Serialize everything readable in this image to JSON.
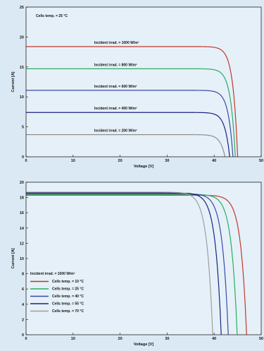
{
  "chart_data": [
    {
      "type": "line",
      "title": "",
      "annotation_top_left": "Cells temp. = 25 °C",
      "xlabel": "Voltage [V]",
      "ylabel": "Current [A]",
      "xlim": [
        0,
        50
      ],
      "ylim": [
        0,
        25
      ],
      "xticks": [
        "0",
        "10",
        "20",
        "30",
        "40",
        "50"
      ],
      "yticks": [
        "0",
        "5",
        "10",
        "15",
        "20",
        "25"
      ],
      "grid": false,
      "series": [
        {
          "name": "Incident irrad. = 1000 W/m²",
          "color": "#c0392b",
          "isc": 18.4,
          "voc": 45.0,
          "knee": 1.0,
          "x": [
            0,
            10,
            20,
            30,
            38,
            40,
            42,
            43,
            44,
            45
          ],
          "y": [
            18.4,
            18.4,
            18.35,
            18.2,
            17.6,
            16.8,
            14.0,
            11.5,
            7.5,
            0
          ]
        },
        {
          "name": "Incident irrad. = 800 W/m²",
          "color": "#27ae60",
          "isc": 14.7,
          "voc": 44.5,
          "knee": 1.0,
          "x": [
            0,
            10,
            20,
            30,
            38,
            40,
            42,
            43,
            44,
            44.5
          ],
          "y": [
            14.7,
            14.7,
            14.65,
            14.5,
            14.0,
            13.2,
            10.5,
            8.0,
            4.0,
            0
          ]
        },
        {
          "name": "Incident irrad. = 600 W/m²",
          "color": "#3949ab",
          "isc": 11.1,
          "voc": 44.0,
          "knee": 1.0,
          "x": [
            0,
            10,
            20,
            30,
            38,
            40,
            41.5,
            42.5,
            43.5,
            44
          ],
          "y": [
            11.1,
            11.1,
            11.05,
            10.9,
            10.4,
            9.8,
            8.0,
            6.0,
            2.5,
            0
          ]
        },
        {
          "name": "Incident irrad. = 400 W/m²",
          "color": "#1a237e",
          "isc": 7.4,
          "voc": 43.3,
          "knee": 1.0,
          "x": [
            0,
            10,
            20,
            30,
            37,
            39,
            41,
            42,
            43,
            43.3
          ],
          "y": [
            7.4,
            7.4,
            7.35,
            7.25,
            6.9,
            6.5,
            5.2,
            3.8,
            1.0,
            0
          ]
        },
        {
          "name": "Incident irrad. = 200 W/m²",
          "color": "#8e8e8e",
          "isc": 3.7,
          "voc": 42.3,
          "knee": 1.0,
          "x": [
            0,
            10,
            20,
            30,
            36,
            38,
            40,
            41,
            42,
            42.3
          ],
          "y": [
            3.7,
            3.7,
            3.68,
            3.6,
            3.4,
            3.2,
            2.5,
            1.8,
            0.5,
            0
          ]
        }
      ]
    },
    {
      "type": "line",
      "title": "",
      "legend_title": "Incident irrad. = 1000 W/m²",
      "legend_position": "bottom-left",
      "xlabel": "Voltage [V]",
      "ylabel": "Current [A]",
      "xlim": [
        0,
        50
      ],
      "ylim": [
        0,
        20
      ],
      "xticks": [
        "0",
        "10",
        "20",
        "30",
        "40",
        "50"
      ],
      "yticks": [
        "0",
        "2",
        "4",
        "6",
        "8",
        "10",
        "12",
        "14",
        "16",
        "18",
        "20"
      ],
      "grid": false,
      "series": [
        {
          "name": "Cells temp. = 10 °C",
          "color": "#c0392b",
          "isc": 18.3,
          "voc": 46.9,
          "knee": 1.25,
          "x": [
            0,
            20,
            30,
            36,
            40,
            42,
            44,
            45,
            46,
            46.9
          ],
          "y": [
            18.3,
            18.3,
            18.25,
            18.0,
            17.2,
            16.0,
            12.5,
            9.5,
            5.0,
            0
          ]
        },
        {
          "name": "Cells temp. = 25 °C",
          "color": "#27ae60",
          "isc": 18.4,
          "voc": 44.9,
          "knee": 1.25,
          "x": [
            0,
            20,
            30,
            34,
            38,
            40,
            42,
            43,
            44,
            44.9
          ],
          "y": [
            18.4,
            18.4,
            18.35,
            18.1,
            17.2,
            16.0,
            12.8,
            9.8,
            5.2,
            0
          ]
        },
        {
          "name": "Cells temp. = 40 °C",
          "color": "#3949ab",
          "isc": 18.5,
          "voc": 43.0,
          "knee": 1.25,
          "x": [
            0,
            20,
            30,
            33,
            36,
            38,
            40,
            41,
            42,
            43
          ],
          "y": [
            18.5,
            18.5,
            18.4,
            18.1,
            17.2,
            16.0,
            12.8,
            9.8,
            5.2,
            0
          ]
        },
        {
          "name": "Cells temp. = 55 °C",
          "color": "#1a237e",
          "isc": 18.6,
          "voc": 41.5,
          "knee": 1.25,
          "x": [
            0,
            20,
            29,
            32,
            35,
            37,
            39,
            40,
            41,
            41.5
          ],
          "y": [
            18.6,
            18.6,
            18.5,
            18.1,
            17.0,
            15.6,
            12.2,
            9.2,
            4.5,
            0
          ]
        },
        {
          "name": "Cells temp. = 70 °C",
          "color": "#9e9e9e",
          "isc": 18.7,
          "voc": 39.7,
          "knee": 1.25,
          "x": [
            0,
            20,
            28,
            31,
            34,
            36,
            38,
            39,
            39.4,
            39.7
          ],
          "y": [
            18.7,
            18.7,
            18.6,
            18.1,
            16.8,
            15.2,
            11.5,
            8.0,
            4.0,
            0
          ]
        }
      ]
    }
  ]
}
